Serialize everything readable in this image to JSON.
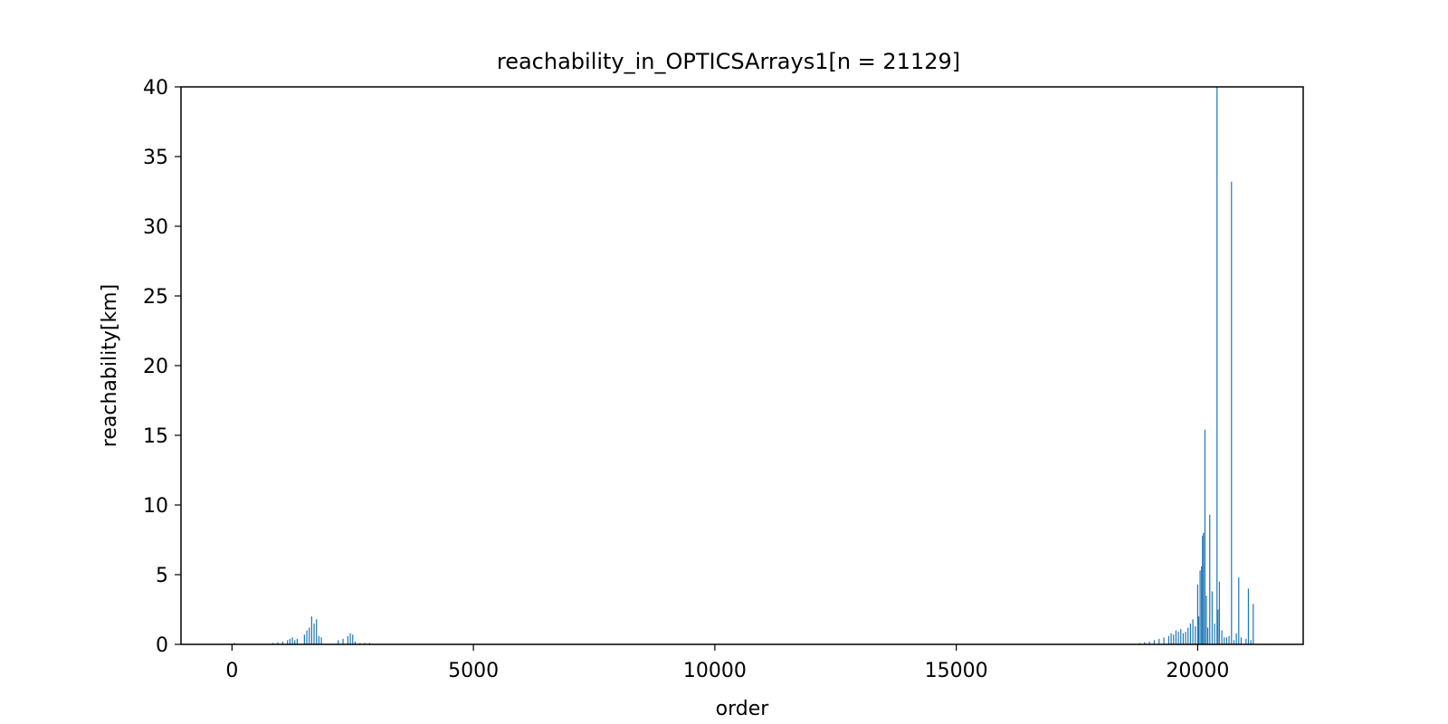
{
  "colors": {
    "bar": "#1f77b4",
    "axis": "#000000",
    "background": "#ffffff"
  },
  "chart_data": {
    "type": "bar",
    "title": "reachability_in_OPTICSArrays1[n = 21129]",
    "xlabel": "order",
    "ylabel": "reachability[km]",
    "xlim": [
      -1056,
      22185
    ],
    "ylim": [
      0,
      40
    ],
    "grid": false,
    "legend": "none",
    "x_ticks": [
      0,
      5000,
      10000,
      15000,
      20000
    ],
    "x_tick_labels": [
      "0",
      "5000",
      "10000",
      "15000",
      "20000"
    ],
    "y_ticks": [
      0,
      5,
      10,
      15,
      20,
      25,
      30,
      35,
      40
    ],
    "y_tick_labels": [
      "0",
      "5",
      "10",
      "15",
      "20",
      "25",
      "30",
      "35",
      "40"
    ],
    "series": [
      {
        "x": [
          50,
          850,
          950,
          1050,
          1150,
          1200,
          1250,
          1300,
          1350,
          1500,
          1550,
          1600,
          1650,
          1700,
          1750,
          1800,
          1850,
          2200,
          2300,
          2400,
          2450,
          2500,
          2550,
          2650,
          2750,
          2850,
          18800,
          18900,
          19000,
          19100,
          19200,
          19300,
          19400,
          19450,
          19500,
          19550,
          19600,
          19650,
          19700,
          19750,
          19800,
          19850,
          19900,
          19950,
          20000,
          20020,
          20050,
          20080,
          20100,
          20120,
          20150,
          20180,
          20210,
          20250,
          20300,
          20350,
          20400,
          20420,
          20450,
          20500,
          20550,
          20600,
          20650,
          20700,
          20750,
          20800,
          20850,
          20900,
          21000,
          21050,
          21100,
          21150
        ],
        "values": [
          0.1,
          0.1,
          0.15,
          0.2,
          0.3,
          0.4,
          0.5,
          0.3,
          0.4,
          0.7,
          1.0,
          1.2,
          2.0,
          1.5,
          1.8,
          0.6,
          0.5,
          0.3,
          0.4,
          0.6,
          0.8,
          0.7,
          0.2,
          0.1,
          0.1,
          0.1,
          0.1,
          0.15,
          0.2,
          0.3,
          0.4,
          0.5,
          0.6,
          0.8,
          0.7,
          1.0,
          0.9,
          1.1,
          0.8,
          0.9,
          1.2,
          1.5,
          1.8,
          1.3,
          4.3,
          2.0,
          5.3,
          5.6,
          7.8,
          8.0,
          15.4,
          3.5,
          1.2,
          9.3,
          3.8,
          1.5,
          40,
          2.5,
          4.5,
          1.0,
          0.5,
          0.5,
          0.6,
          33.2,
          0.3,
          0.8,
          4.8,
          0.5,
          0.4,
          4.0,
          0.3,
          2.9
        ]
      }
    ]
  }
}
